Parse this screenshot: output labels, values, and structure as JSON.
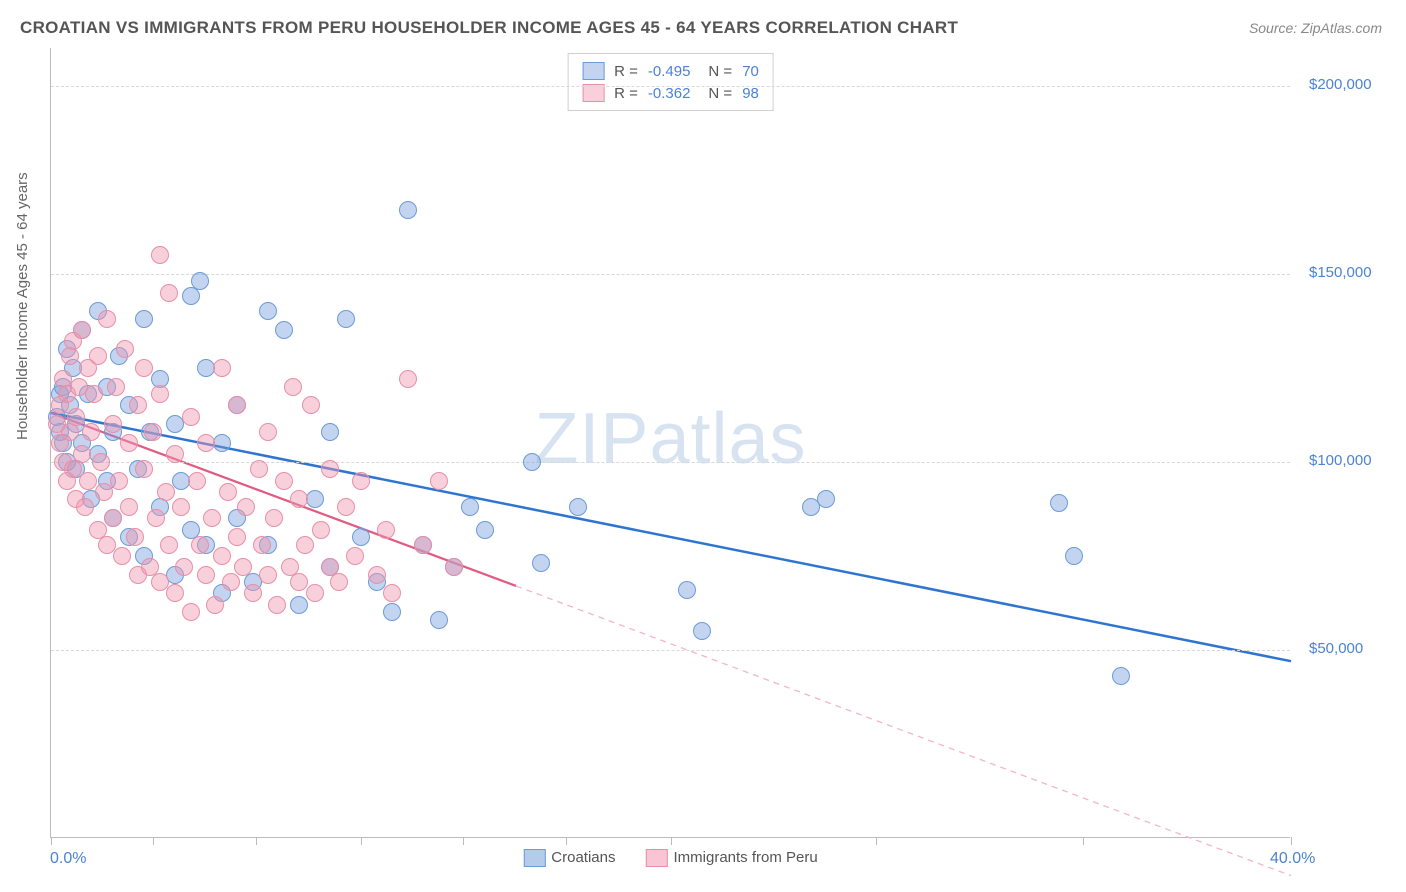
{
  "title": "CROATIAN VS IMMIGRANTS FROM PERU HOUSEHOLDER INCOME AGES 45 - 64 YEARS CORRELATION CHART",
  "source": "Source: ZipAtlas.com",
  "ylabel": "Householder Income Ages 45 - 64 years",
  "watermark_a": "ZIP",
  "watermark_b": "atlas",
  "chart": {
    "type": "scatter",
    "xlim": [
      0,
      40
    ],
    "ylim": [
      0,
      210000
    ],
    "x_tick_positions": [
      0,
      3.3,
      6.6,
      10,
      13.3,
      16.6,
      20,
      26.6,
      33.3,
      40
    ],
    "x_start_label": "0.0%",
    "x_end_label": "40.0%",
    "y_gridlines": [
      50000,
      100000,
      150000,
      200000
    ],
    "y_labels": [
      "$50,000",
      "$100,000",
      "$150,000",
      "$200,000"
    ],
    "grid_color": "#d8d8d8",
    "axis_color": "#bbbbbb",
    "label_color": "#4b82d4",
    "marker_radius": 9,
    "marker_border": 1.3,
    "series": [
      {
        "name": "Croatians",
        "fill": "rgba(120,160,220,0.45)",
        "stroke": "#6d9bd6",
        "R": "-0.495",
        "N": "70",
        "trend": {
          "x1": 0,
          "y1": 113000,
          "x2": 40,
          "y2": 47000,
          "color": "#2f74d0",
          "width": 2.5,
          "dash": ""
        },
        "points": [
          [
            0.2,
            112000
          ],
          [
            0.3,
            108000
          ],
          [
            0.3,
            118000
          ],
          [
            0.4,
            120000
          ],
          [
            0.4,
            105000
          ],
          [
            0.5,
            130000
          ],
          [
            0.5,
            100000
          ],
          [
            0.6,
            115000
          ],
          [
            0.7,
            125000
          ],
          [
            0.8,
            110000
          ],
          [
            0.8,
            98000
          ],
          [
            1.0,
            135000
          ],
          [
            1.0,
            105000
          ],
          [
            1.2,
            118000
          ],
          [
            1.3,
            90000
          ],
          [
            1.5,
            140000
          ],
          [
            1.5,
            102000
          ],
          [
            1.8,
            95000
          ],
          [
            1.8,
            120000
          ],
          [
            2.0,
            85000
          ],
          [
            2.0,
            108000
          ],
          [
            2.2,
            128000
          ],
          [
            2.5,
            80000
          ],
          [
            2.5,
            115000
          ],
          [
            2.8,
            98000
          ],
          [
            3.0,
            138000
          ],
          [
            3.0,
            75000
          ],
          [
            3.2,
            108000
          ],
          [
            3.5,
            122000
          ],
          [
            3.5,
            88000
          ],
          [
            4.0,
            70000
          ],
          [
            4.0,
            110000
          ],
          [
            4.2,
            95000
          ],
          [
            4.5,
            144000
          ],
          [
            4.5,
            82000
          ],
          [
            5.0,
            78000
          ],
          [
            5.0,
            125000
          ],
          [
            5.5,
            65000
          ],
          [
            5.5,
            105000
          ],
          [
            6.0,
            85000
          ],
          [
            6.0,
            115000
          ],
          [
            6.5,
            68000
          ],
          [
            7.0,
            140000
          ],
          [
            7.0,
            78000
          ],
          [
            7.5,
            135000
          ],
          [
            8.0,
            62000
          ],
          [
            8.5,
            90000
          ],
          [
            9.0,
            72000
          ],
          [
            9.0,
            108000
          ],
          [
            9.5,
            138000
          ],
          [
            10.0,
            80000
          ],
          [
            10.5,
            68000
          ],
          [
            11.0,
            60000
          ],
          [
            11.5,
            167000
          ],
          [
            12.0,
            78000
          ],
          [
            12.5,
            58000
          ],
          [
            13.0,
            72000
          ],
          [
            13.5,
            88000
          ],
          [
            14.0,
            82000
          ],
          [
            15.5,
            100000
          ],
          [
            15.8,
            73000
          ],
          [
            17.0,
            88000
          ],
          [
            20.5,
            66000
          ],
          [
            21.0,
            55000
          ],
          [
            24.5,
            88000
          ],
          [
            25.0,
            90000
          ],
          [
            32.5,
            89000
          ],
          [
            33.0,
            75000
          ],
          [
            34.5,
            43000
          ],
          [
            4.8,
            148000
          ]
        ]
      },
      {
        "name": "Immigrants from Peru",
        "fill": "rgba(240,150,175,0.45)",
        "stroke": "#e78fa8",
        "R": "-0.362",
        "N": "98",
        "trend_solid": {
          "x1": 0,
          "y1": 113000,
          "x2": 15,
          "y2": 67000,
          "color": "#e05a84",
          "width": 2.2
        },
        "trend_dash": {
          "x1": 15,
          "y1": 67000,
          "x2": 40,
          "y2": -10000,
          "color": "#f3b6c6",
          "width": 1.3,
          "dash": "6,5"
        },
        "points": [
          [
            0.2,
            110000
          ],
          [
            0.3,
            115000
          ],
          [
            0.3,
            105000
          ],
          [
            0.4,
            122000
          ],
          [
            0.4,
            100000
          ],
          [
            0.5,
            118000
          ],
          [
            0.5,
            95000
          ],
          [
            0.6,
            128000
          ],
          [
            0.6,
            108000
          ],
          [
            0.7,
            132000
          ],
          [
            0.7,
            98000
          ],
          [
            0.8,
            112000
          ],
          [
            0.8,
            90000
          ],
          [
            0.9,
            120000
          ],
          [
            1.0,
            102000
          ],
          [
            1.0,
            135000
          ],
          [
            1.1,
            88000
          ],
          [
            1.2,
            125000
          ],
          [
            1.2,
            95000
          ],
          [
            1.3,
            108000
          ],
          [
            1.4,
            118000
          ],
          [
            1.5,
            82000
          ],
          [
            1.5,
            128000
          ],
          [
            1.6,
            100000
          ],
          [
            1.7,
            92000
          ],
          [
            1.8,
            138000
          ],
          [
            1.8,
            78000
          ],
          [
            2.0,
            110000
          ],
          [
            2.0,
            85000
          ],
          [
            2.1,
            120000
          ],
          [
            2.2,
            95000
          ],
          [
            2.3,
            75000
          ],
          [
            2.4,
            130000
          ],
          [
            2.5,
            88000
          ],
          [
            2.5,
            105000
          ],
          [
            2.7,
            80000
          ],
          [
            2.8,
            115000
          ],
          [
            2.8,
            70000
          ],
          [
            3.0,
            98000
          ],
          [
            3.0,
            125000
          ],
          [
            3.2,
            72000
          ],
          [
            3.3,
            108000
          ],
          [
            3.4,
            85000
          ],
          [
            3.5,
            68000
          ],
          [
            3.5,
            118000
          ],
          [
            3.7,
            92000
          ],
          [
            3.8,
            78000
          ],
          [
            3.8,
            145000
          ],
          [
            4.0,
            65000
          ],
          [
            4.0,
            102000
          ],
          [
            4.2,
            88000
          ],
          [
            4.3,
            72000
          ],
          [
            4.5,
            112000
          ],
          [
            4.5,
            60000
          ],
          [
            4.7,
            95000
          ],
          [
            4.8,
            78000
          ],
          [
            5.0,
            70000
          ],
          [
            5.0,
            105000
          ],
          [
            5.2,
            85000
          ],
          [
            5.3,
            62000
          ],
          [
            5.5,
            125000
          ],
          [
            5.5,
            75000
          ],
          [
            5.7,
            92000
          ],
          [
            5.8,
            68000
          ],
          [
            6.0,
            80000
          ],
          [
            6.0,
            115000
          ],
          [
            6.2,
            72000
          ],
          [
            6.3,
            88000
          ],
          [
            6.5,
            65000
          ],
          [
            6.7,
            98000
          ],
          [
            6.8,
            78000
          ],
          [
            7.0,
            70000
          ],
          [
            7.0,
            108000
          ],
          [
            7.2,
            85000
          ],
          [
            7.3,
            62000
          ],
          [
            7.5,
            95000
          ],
          [
            7.7,
            72000
          ],
          [
            7.8,
            120000
          ],
          [
            8.0,
            68000
          ],
          [
            8.0,
            90000
          ],
          [
            8.2,
            78000
          ],
          [
            8.4,
            115000
          ],
          [
            8.5,
            65000
          ],
          [
            8.7,
            82000
          ],
          [
            9.0,
            72000
          ],
          [
            9.0,
            98000
          ],
          [
            9.3,
            68000
          ],
          [
            9.5,
            88000
          ],
          [
            9.8,
            75000
          ],
          [
            10.0,
            95000
          ],
          [
            10.5,
            70000
          ],
          [
            10.8,
            82000
          ],
          [
            11.0,
            65000
          ],
          [
            11.5,
            122000
          ],
          [
            12.0,
            78000
          ],
          [
            12.5,
            95000
          ],
          [
            13.0,
            72000
          ],
          [
            3.5,
            155000
          ]
        ]
      }
    ],
    "legend_bottom": [
      {
        "label": "Croatians",
        "fill": "rgba(120,160,220,0.55)",
        "stroke": "#6d9bd6"
      },
      {
        "label": "Immigrants from Peru",
        "fill": "rgba(240,150,175,0.55)",
        "stroke": "#e78fa8"
      }
    ]
  }
}
